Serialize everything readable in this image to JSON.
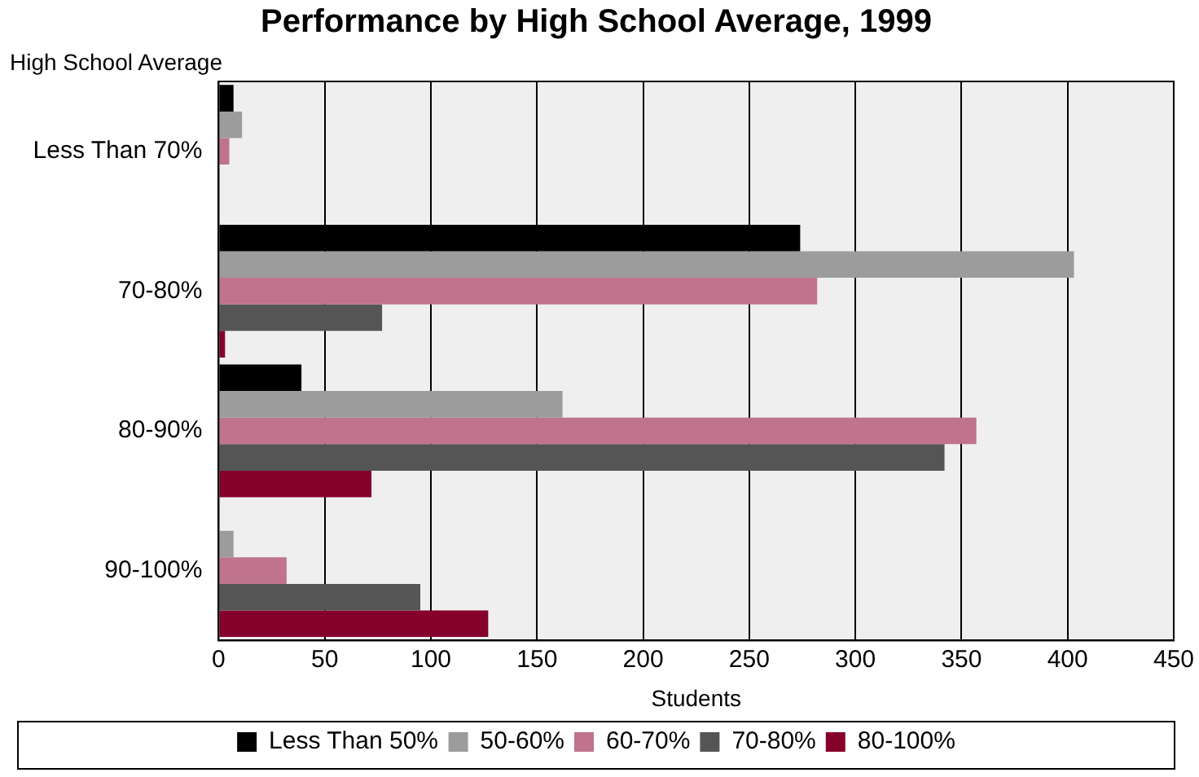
{
  "chart_data": {
    "type": "bar",
    "orientation": "horizontal",
    "title": "Performance by High School Average, 1999",
    "xlabel": "Students",
    "ylabel": "High School Average",
    "categories": [
      "Less Than 70%",
      "70-80%",
      "80-90%",
      "90-100%"
    ],
    "series": [
      {
        "name": "Less Than 50%",
        "color": "#000000",
        "values": [
          7,
          274,
          39,
          null
        ]
      },
      {
        "name": "50-60%",
        "color": "#9c9c9c",
        "values": [
          11,
          403,
          162,
          7
        ]
      },
      {
        "name": "60-70%",
        "color": "#bf738c",
        "values": [
          5,
          282,
          357,
          32
        ]
      },
      {
        "name": "70-80%",
        "color": "#555555",
        "values": [
          null,
          77,
          342,
          95
        ]
      },
      {
        "name": "80-100%",
        "color": "#85002b",
        "values": [
          null,
          3,
          72,
          127
        ]
      }
    ],
    "xlim": [
      0,
      450
    ],
    "xticks": [
      0,
      50,
      100,
      150,
      200,
      250,
      300,
      350,
      400,
      450
    ],
    "grid": "x",
    "legend": "bottom"
  }
}
